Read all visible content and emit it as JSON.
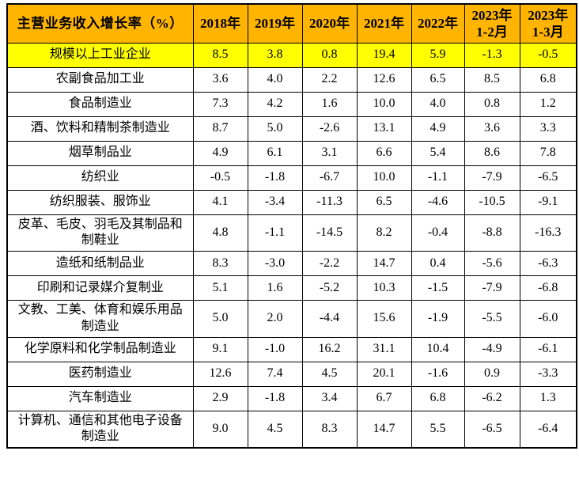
{
  "chart_data": {
    "type": "table",
    "title": "主营业务收入增长率（%）",
    "unit": "%",
    "columns": [
      "2018年",
      "2019年",
      "2020年",
      "2021年",
      "2022年",
      "2023年\n1-2月",
      "2023年\n1-3月"
    ],
    "rows": [
      {
        "label": "规模以上工业企业",
        "highlight": true,
        "values": [
          "8.5",
          "3.8",
          "0.8",
          "19.4",
          "5.9",
          "-1.3",
          "-0.5"
        ]
      },
      {
        "label": "农副食品加工业",
        "highlight": false,
        "values": [
          "3.6",
          "4.0",
          "2.2",
          "12.6",
          "6.5",
          "8.5",
          "6.8"
        ]
      },
      {
        "label": "食品制造业",
        "highlight": false,
        "values": [
          "7.3",
          "4.2",
          "1.6",
          "10.0",
          "4.0",
          "0.8",
          "1.2"
        ]
      },
      {
        "label": "酒、饮料和精制茶制造业",
        "highlight": false,
        "values": [
          "8.7",
          "5.0",
          "-2.6",
          "13.1",
          "4.9",
          "3.6",
          "3.3"
        ]
      },
      {
        "label": "烟草制品业",
        "highlight": false,
        "values": [
          "4.9",
          "6.1",
          "3.1",
          "6.6",
          "5.4",
          "8.6",
          "7.8"
        ]
      },
      {
        "label": "纺织业",
        "highlight": false,
        "values": [
          "-0.5",
          "-1.8",
          "-6.7",
          "10.0",
          "-1.1",
          "-7.9",
          "-6.5"
        ]
      },
      {
        "label": "纺织服装、服饰业",
        "highlight": false,
        "values": [
          "4.1",
          "-3.4",
          "-11.3",
          "6.5",
          "-4.6",
          "-10.5",
          "-9.1"
        ]
      },
      {
        "label": "皮革、毛皮、羽毛及其制品和制鞋业",
        "highlight": false,
        "values": [
          "4.8",
          "-1.1",
          "-14.5",
          "8.2",
          "-0.4",
          "-8.8",
          "-16.3"
        ]
      },
      {
        "label": "造纸和纸制品业",
        "highlight": false,
        "values": [
          "8.3",
          "-3.0",
          "-2.2",
          "14.7",
          "0.4",
          "-5.6",
          "-6.3"
        ]
      },
      {
        "label": "印刷和记录媒介复制业",
        "highlight": false,
        "values": [
          "5.1",
          "1.6",
          "-5.2",
          "10.3",
          "-1.5",
          "-7.9",
          "-6.8"
        ]
      },
      {
        "label": "文教、工美、体育和娱乐用品制造业",
        "highlight": false,
        "values": [
          "5.0",
          "2.0",
          "-4.4",
          "15.6",
          "-1.9",
          "-5.5",
          "-6.0"
        ]
      },
      {
        "label": "化学原料和化学制品制造业",
        "highlight": false,
        "values": [
          "9.1",
          "-1.0",
          "16.2",
          "31.1",
          "10.4",
          "-4.9",
          "-6.1"
        ]
      },
      {
        "label": "医药制造业",
        "highlight": false,
        "values": [
          "12.6",
          "7.4",
          "4.5",
          "20.1",
          "-1.6",
          "0.9",
          "-3.3"
        ]
      },
      {
        "label": "汽车制造业",
        "highlight": false,
        "values": [
          "2.9",
          "-1.8",
          "3.4",
          "6.7",
          "6.8",
          "-6.2",
          "1.3"
        ]
      },
      {
        "label": "计算机、通信和其他电子设备制造业",
        "highlight": false,
        "values": [
          "9.0",
          "4.5",
          "8.3",
          "14.7",
          "5.5",
          "-6.5",
          "-6.4"
        ]
      }
    ]
  },
  "colors": {
    "header_bg": "#FFB400",
    "highlight_bg": "#FFFF00",
    "border": "#000000",
    "text": "#000000",
    "page_bg": "#FFFFFF"
  }
}
